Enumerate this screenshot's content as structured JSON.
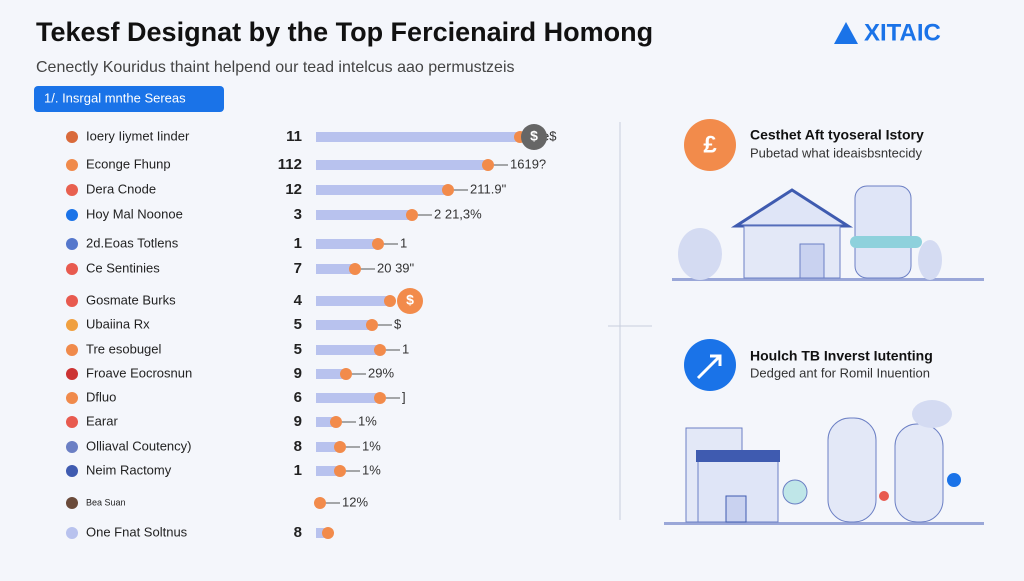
{
  "header": {
    "title": "Tekesf Designat by the Top Fercienaird Homong",
    "subtitle": "Cenectly Kouridus thaint helpend our tead intelcus aao permustzeis",
    "tag": "1/. Insrgal mnthe Sereas",
    "logo": "XITAIC"
  },
  "rows": [
    {
      "label": "Ioery Iiymet Iinder",
      "number": "11",
      "note": "e$",
      "badge": "$"
    },
    {
      "label": "Econge Fhunp",
      "number": "112",
      "note": "1619?"
    },
    {
      "label": "Dera Cnode",
      "number": "12",
      "note": "211.9\""
    },
    {
      "label": "Hoy Mal Noonoe",
      "number": "3",
      "note": "2 21,3%"
    },
    {
      "label": "2d.Eoas Totlens",
      "number": "1",
      "note": "1"
    },
    {
      "label": "Ce Sentinies",
      "number": "7",
      "note": "20 39\""
    },
    {
      "label": "Gosmate Burks",
      "number": "4",
      "badge": "$"
    },
    {
      "label": "Ubaiina Rx",
      "number": "5",
      "note": "$"
    },
    {
      "label": "Tre esobugel",
      "number": "5",
      "note": "1"
    },
    {
      "label": "Froave Eocrosnun",
      "number": "9",
      "note": "29%"
    },
    {
      "label": "Dfluo",
      "number": "6",
      "note": "]"
    },
    {
      "label": "Earar",
      "number": "9",
      "note": "1%"
    },
    {
      "label": "Olliaval Coutency)",
      "number": "8",
      "note": "1%"
    },
    {
      "label": "Neim Ractomy",
      "number": "1",
      "note": "1%"
    },
    {
      "label": "Bea Suan",
      "note": "12%"
    },
    {
      "label": "One Fnat Soltnus",
      "number": "8"
    }
  ],
  "cards": [
    {
      "icon": "£",
      "title": "Cesthet Aft tyoseral Istory",
      "text": "Pubetad what ideaisbsntecidy"
    },
    {
      "title": "Houlch TB Inverst Iutenting",
      "text": "Dedged ant for Romil Inuention"
    }
  ]
}
